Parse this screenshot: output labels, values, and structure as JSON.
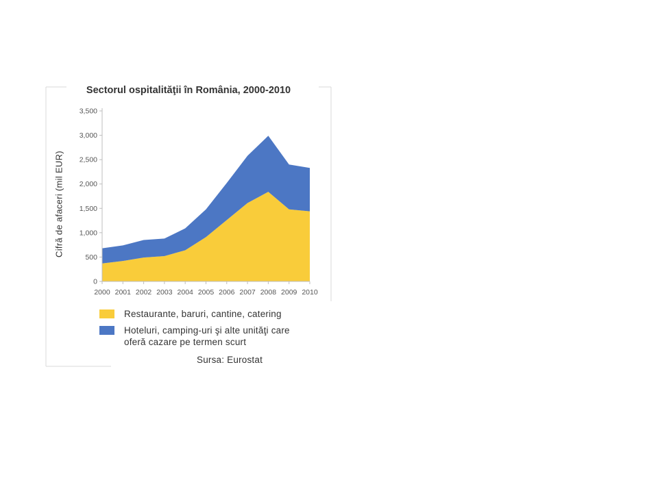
{
  "colors": {
    "restaurants": "#F9CC3A",
    "hotels": "#4C77C4",
    "text": "#333333",
    "axis": "#d0d0d0"
  },
  "legend": {
    "item1": "Restaurante, baruri, cantine, catering",
    "item2_line1": "Hoteluri, camping-uri şi alte unităţi care",
    "item2_line2": "oferă cazare pe termen scurt"
  },
  "source": "Sursa: Eurostat",
  "chart_data": {
    "type": "area",
    "stacked": true,
    "title": "Sectorul ospitalităţii  în România, 2000-2010",
    "xlabel": "",
    "ylabel": "Cifră de afaceri (mil EUR)",
    "ylim": [
      0,
      3500
    ],
    "yticks": [
      "0",
      "500",
      "1,000",
      "1,500",
      "2,000",
      "2,500",
      "3,000",
      "3,500"
    ],
    "x": [
      "2000",
      "2001",
      "2002",
      "2003",
      "2004",
      "2005",
      "2006",
      "2007",
      "2008",
      "2009",
      "2010"
    ],
    "series": [
      {
        "name": "Restaurante, baruri, cantine, catering",
        "color_key": "restaurants",
        "values": [
          370,
          420,
          490,
          520,
          640,
          910,
          1260,
          1610,
          1840,
          1480,
          1440
        ]
      },
      {
        "name": "Hoteluri, camping-uri şi alte unităţi care oferă cazare pe termen scurt",
        "color_key": "hotels",
        "values": [
          310,
          320,
          360,
          360,
          450,
          570,
          760,
          970,
          1150,
          920,
          890
        ]
      }
    ],
    "stacked_totals": [
      680,
      740,
      850,
      880,
      1090,
      1480,
      2020,
      2580,
      2990,
      2400,
      2330
    ],
    "grid": false,
    "legend_position": "bottom-left"
  }
}
